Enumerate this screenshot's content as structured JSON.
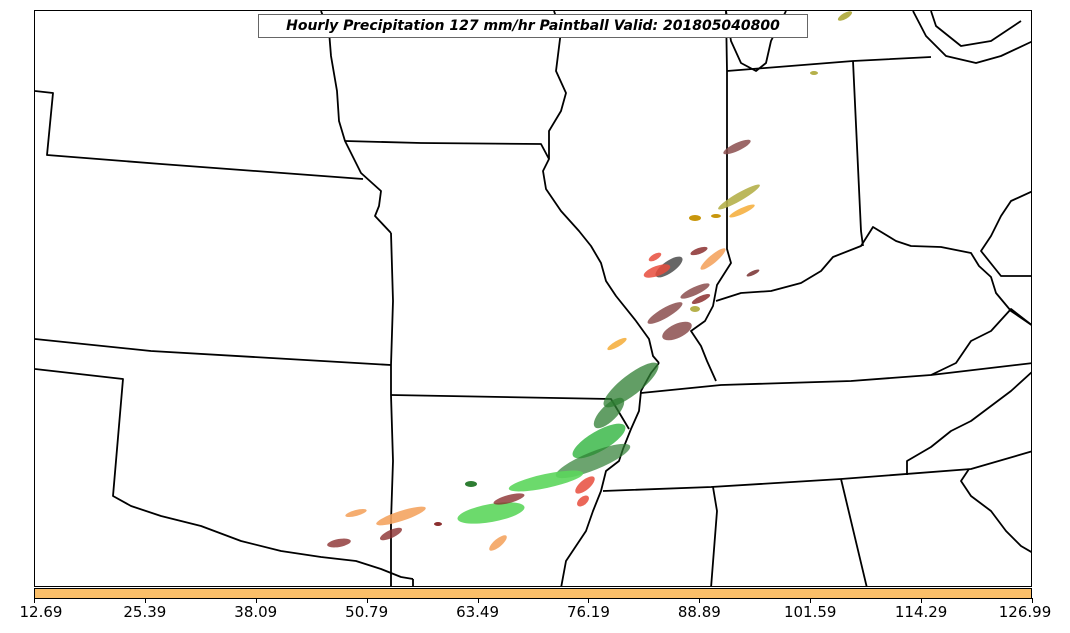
{
  "title": "Hourly Precipitation 127 mm/hr Paintball Valid: 201805040800",
  "colorbar": {
    "color": "#fbbf69",
    "ticks": [
      "12.69",
      "25.39",
      "38.09",
      "50.79",
      "63.49",
      "76.19",
      "88.89",
      "101.59",
      "114.29",
      "126.99"
    ]
  },
  "colors": {
    "map_lines": "#000000",
    "background": "#ffffff"
  },
  "paintball_colors": [
    "#2e7d32",
    "#3cb84a",
    "#5cd65c",
    "#e74c3c",
    "#8b2f2f",
    "#f4a460",
    "#f5b041",
    "#b5b04a",
    "#c8960c",
    "#404040",
    "#8b4d4d"
  ]
}
